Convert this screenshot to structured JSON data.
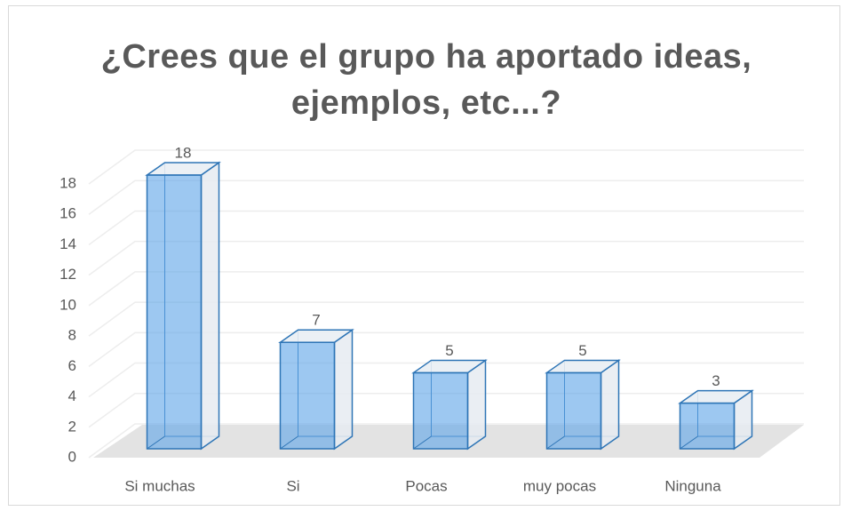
{
  "chart_data": {
    "type": "bar",
    "title": "¿Crees que el grupo ha aportado ideas, ejemplos, etc...?",
    "categories": [
      "Si muchas",
      "Si",
      "Pocas",
      "muy pocas",
      "Ninguna"
    ],
    "values": [
      18,
      7,
      5,
      5,
      3
    ],
    "color": "#5ba3e8",
    "ylim": [
      0,
      18
    ],
    "yticks": [
      0,
      2,
      4,
      6,
      8,
      10,
      12,
      14,
      16,
      18
    ],
    "grid": true
  }
}
